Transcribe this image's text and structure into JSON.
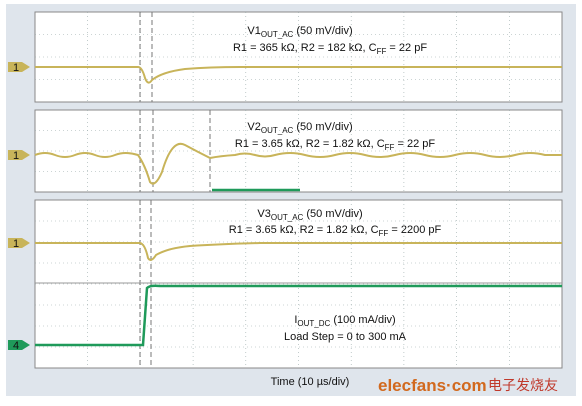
{
  "panels": [
    {
      "label": {
        "main": "V1",
        "sub": "OUT_AC",
        "rest": " (50 mV/div)"
      },
      "params": {
        "main": "R1 = 365 kΩ, R2 = 182 kΩ, C",
        "sub": "FF",
        "rest": " = 22 pF"
      },
      "markers": [
        "1"
      ]
    },
    {
      "label": {
        "main": "V2",
        "sub": "OUT_AC",
        "rest": " (50 mV/div)"
      },
      "params": {
        "main": "R1 = 3.65 kΩ, R2 = 1.82 kΩ, C",
        "sub": "FF",
        "rest": " = 22 pF"
      },
      "markers": [
        "1"
      ]
    },
    {
      "label": {
        "main": "V3",
        "sub": "OUT_AC",
        "rest": " (50 mV/div)"
      },
      "params": {
        "main": "R1 = 3.65 kΩ, R2 = 1.82 kΩ, C",
        "sub": "FF",
        "rest": " = 2200 pF"
      },
      "current": {
        "main": "I",
        "sub": "OUT_DC",
        "rest": " (100 mA/div)"
      },
      "load": "Load Step = 0 to 300 mA",
      "markers": [
        "1",
        "4"
      ]
    }
  ],
  "time_label": "Time (10 µs/div)",
  "watermark": {
    "site": "elecfans·com",
    "name": "电子发烧友"
  }
}
